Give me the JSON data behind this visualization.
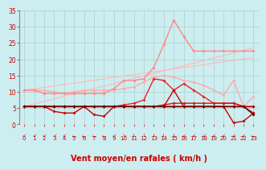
{
  "background_color": "#cceef0",
  "grid_color": "#aacccc",
  "xlabel": "Vent moyen/en rafales ( km/h )",
  "xlabel_color": "#cc0000",
  "xlabel_fontsize": 7,
  "xtick_color": "#cc0000",
  "ytick_color": "#cc0000",
  "xlim": [
    -0.5,
    23.5
  ],
  "ylim": [
    0,
    35
  ],
  "yticks": [
    0,
    5,
    10,
    15,
    20,
    25,
    30,
    35
  ],
  "xticks": [
    0,
    1,
    2,
    3,
    4,
    5,
    6,
    7,
    8,
    9,
    10,
    11,
    12,
    13,
    14,
    15,
    16,
    17,
    18,
    19,
    20,
    21,
    22,
    23
  ],
  "lines": [
    {
      "comment": "light pink rising line (straight trend)",
      "x": [
        0,
        23
      ],
      "y": [
        5.5,
        23.5
      ],
      "color": "#ffbbbb",
      "linewidth": 0.9,
      "marker": null
    },
    {
      "comment": "light pink upper rising line",
      "x": [
        0,
        23
      ],
      "y": [
        10.5,
        20.5
      ],
      "color": "#ffbbbb",
      "linewidth": 0.9,
      "marker": null
    },
    {
      "comment": "light pink wavy line with markers - peaks at 15",
      "x": [
        0,
        1,
        2,
        3,
        4,
        5,
        6,
        7,
        8,
        9,
        10,
        11,
        12,
        13,
        14,
        15,
        16,
        17,
        18,
        19,
        20,
        21,
        22,
        23
      ],
      "y": [
        10.5,
        10.5,
        10.5,
        10.0,
        9.5,
        10.0,
        10.5,
        10.5,
        10.5,
        10.5,
        11.0,
        11.5,
        13.0,
        14.5,
        15.0,
        14.5,
        13.5,
        13.0,
        12.0,
        10.5,
        9.0,
        13.5,
        5.5,
        8.5
      ],
      "color": "#ffaaaa",
      "linewidth": 1.0,
      "marker": "D",
      "markersize": 2.0
    },
    {
      "comment": "bright pink with big peak at 15 ~32",
      "x": [
        0,
        1,
        2,
        3,
        4,
        5,
        6,
        7,
        8,
        9,
        10,
        11,
        12,
        13,
        14,
        15,
        16,
        17,
        18,
        19,
        20,
        21,
        22,
        23
      ],
      "y": [
        10.5,
        10.5,
        9.5,
        9.5,
        9.5,
        9.5,
        9.5,
        9.5,
        9.5,
        11.0,
        13.5,
        13.5,
        14.0,
        17.5,
        24.5,
        32.0,
        27.0,
        22.5,
        22.5,
        22.5,
        22.5,
        22.5,
        22.5,
        22.5
      ],
      "color": "#ff8888",
      "linewidth": 1.0,
      "marker": "D",
      "markersize": 2.0
    },
    {
      "comment": "medium red line with peak ~14 at x=14-15",
      "x": [
        0,
        1,
        2,
        3,
        4,
        5,
        6,
        7,
        8,
        9,
        10,
        11,
        12,
        13,
        14,
        15,
        16,
        17,
        18,
        19,
        20,
        21,
        22,
        23
      ],
      "y": [
        5.5,
        5.5,
        5.5,
        5.5,
        5.5,
        5.5,
        5.5,
        5.5,
        5.5,
        5.5,
        6.0,
        6.5,
        7.5,
        14.0,
        13.5,
        10.5,
        12.5,
        10.5,
        8.5,
        6.5,
        6.5,
        6.5,
        5.5,
        5.5
      ],
      "color": "#ee2222",
      "linewidth": 1.0,
      "marker": "D",
      "markersize": 2.0
    },
    {
      "comment": "red line relatively flat ~5-6",
      "x": [
        0,
        1,
        2,
        3,
        4,
        5,
        6,
        7,
        8,
        9,
        10,
        11,
        12,
        13,
        14,
        15,
        16,
        17,
        18,
        19,
        20,
        21,
        22,
        23
      ],
      "y": [
        5.5,
        5.5,
        5.5,
        5.5,
        5.5,
        5.5,
        5.5,
        5.5,
        5.5,
        5.5,
        5.5,
        5.5,
        5.5,
        5.5,
        6.0,
        6.5,
        6.5,
        6.5,
        6.5,
        6.5,
        6.5,
        6.5,
        5.5,
        3.5
      ],
      "color": "#dd1111",
      "linewidth": 1.0,
      "marker": "D",
      "markersize": 2.0
    },
    {
      "comment": "dark red with dip in middle",
      "x": [
        0,
        1,
        2,
        3,
        4,
        5,
        6,
        7,
        8,
        9,
        10,
        11,
        12,
        13,
        14,
        15,
        16,
        17,
        18,
        19,
        20,
        21,
        22,
        23
      ],
      "y": [
        5.5,
        5.5,
        5.5,
        4.0,
        3.5,
        3.5,
        5.5,
        3.0,
        2.5,
        5.5,
        5.5,
        5.5,
        5.5,
        5.5,
        5.5,
        10.5,
        5.5,
        5.5,
        5.5,
        5.5,
        5.5,
        0.5,
        1.0,
        3.5
      ],
      "color": "#cc0000",
      "linewidth": 1.0,
      "marker": "D",
      "markersize": 2.0
    },
    {
      "comment": "very dark red nearly flat",
      "x": [
        0,
        1,
        2,
        3,
        4,
        5,
        6,
        7,
        8,
        9,
        10,
        11,
        12,
        13,
        14,
        15,
        16,
        17,
        18,
        19,
        20,
        21,
        22,
        23
      ],
      "y": [
        5.5,
        5.5,
        5.5,
        5.5,
        5.5,
        5.5,
        5.5,
        5.5,
        5.5,
        5.5,
        5.5,
        5.5,
        5.5,
        5.5,
        5.5,
        5.5,
        5.5,
        5.5,
        5.5,
        5.5,
        5.5,
        5.5,
        5.5,
        5.5
      ],
      "color": "#aa0000",
      "linewidth": 1.0,
      "marker": "D",
      "markersize": 2.0
    },
    {
      "comment": "darkest red/black nearly flat with slight drop at end",
      "x": [
        0,
        1,
        2,
        3,
        4,
        5,
        6,
        7,
        8,
        9,
        10,
        11,
        12,
        13,
        14,
        15,
        16,
        17,
        18,
        19,
        20,
        21,
        22,
        23
      ],
      "y": [
        5.5,
        5.5,
        5.5,
        5.5,
        5.5,
        5.5,
        5.5,
        5.5,
        5.5,
        5.5,
        5.5,
        5.5,
        5.5,
        5.5,
        5.5,
        5.5,
        5.5,
        5.5,
        5.5,
        5.5,
        5.5,
        5.5,
        5.5,
        3.0
      ],
      "color": "#660000",
      "linewidth": 1.0,
      "marker": "D",
      "markersize": 2.0
    }
  ],
  "wind_arrow_color": "#cc0000",
  "left_spine_color": "#888888"
}
